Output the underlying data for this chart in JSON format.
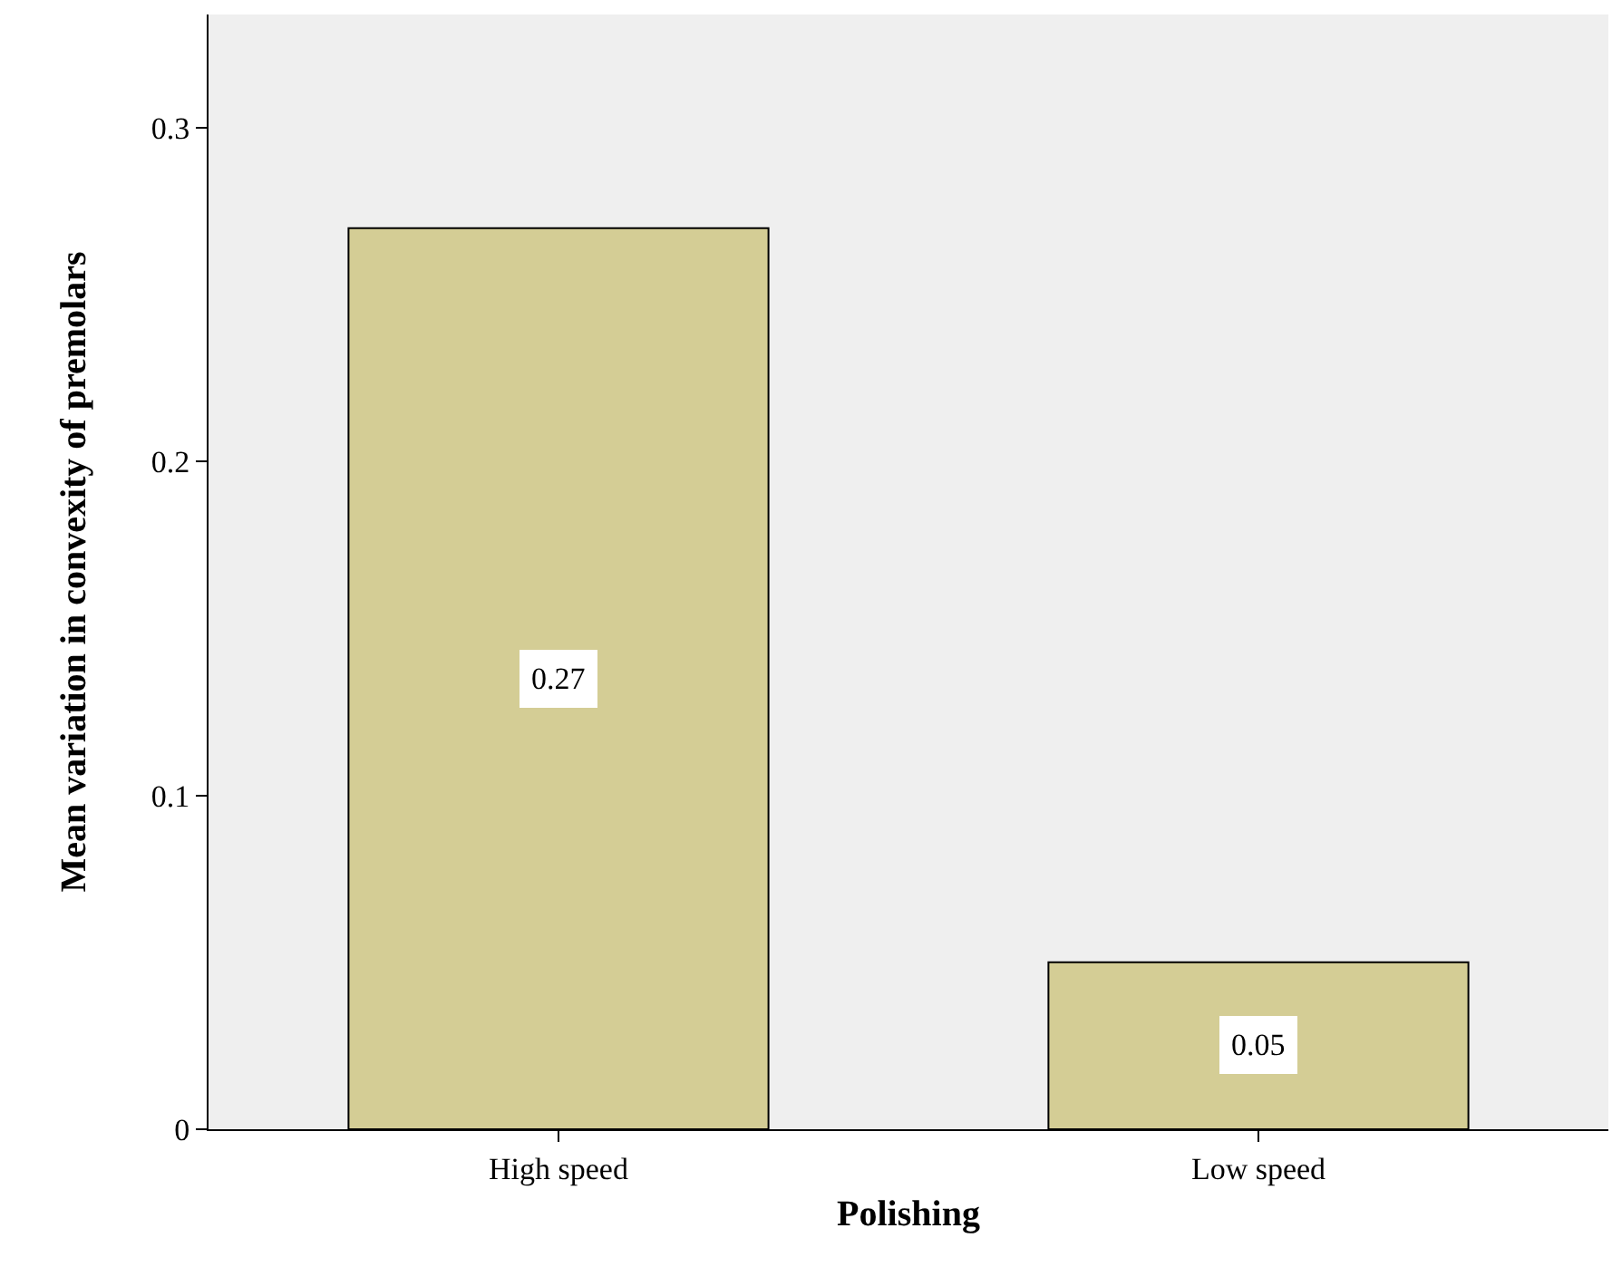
{
  "chart_data": {
    "type": "bar",
    "xlabel": "Polishing",
    "ylabel": "Mean variation in convexity of premolars",
    "categories": [
      "High speed",
      "Low speed"
    ],
    "values": [
      0.27,
      0.05
    ],
    "color": "#d4cd95",
    "ylim": [
      0,
      0.334
    ],
    "yticks": [
      0,
      0.1,
      0.2,
      0.3
    ],
    "data_labels": true,
    "grid": false,
    "legend": false
  }
}
